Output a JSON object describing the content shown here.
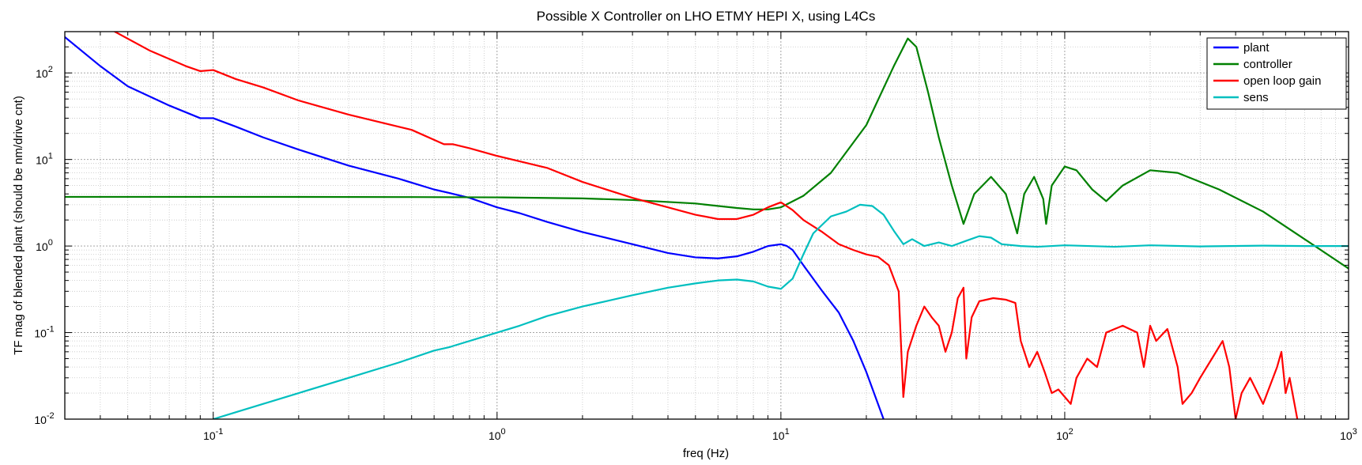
{
  "chart_data": {
    "type": "line",
    "title": "Possible X Controller on LHO ETMY HEPI X, using L4Cs",
    "xlabel": "freq (Hz)",
    "ylabel": "TF mag of blended plant (should be nm/drive cnt)",
    "xscale": "log",
    "yscale": "log",
    "xlim": [
      0.03,
      1000
    ],
    "ylim": [
      0.01,
      300
    ],
    "grid": true,
    "legend_position": "top-right",
    "x_tick_labels": [
      {
        "value": 0.1,
        "base": "10",
        "exp": "-1"
      },
      {
        "value": 1,
        "base": "10",
        "exp": "0"
      },
      {
        "value": 10,
        "base": "10",
        "exp": "1"
      },
      {
        "value": 100,
        "base": "10",
        "exp": "2"
      },
      {
        "value": 1000,
        "base": "10",
        "exp": "3"
      }
    ],
    "y_tick_labels": [
      {
        "value": 0.01,
        "base": "10",
        "exp": "-2"
      },
      {
        "value": 0.1,
        "base": "10",
        "exp": "-1"
      },
      {
        "value": 1,
        "base": "10",
        "exp": "0"
      },
      {
        "value": 10,
        "base": "10",
        "exp": "1"
      },
      {
        "value": 100,
        "base": "10",
        "exp": "2"
      }
    ],
    "series": [
      {
        "name": "plant",
        "color": "#0000ff",
        "points": [
          [
            0.03,
            260
          ],
          [
            0.04,
            120
          ],
          [
            0.05,
            70
          ],
          [
            0.07,
            42
          ],
          [
            0.09,
            30
          ],
          [
            0.1,
            30
          ],
          [
            0.12,
            24
          ],
          [
            0.15,
            18
          ],
          [
            0.2,
            13
          ],
          [
            0.3,
            8.5
          ],
          [
            0.45,
            6
          ],
          [
            0.6,
            4.5
          ],
          [
            0.68,
            4.1
          ],
          [
            0.7,
            4.0
          ],
          [
            0.8,
            3.6
          ],
          [
            1.0,
            2.8
          ],
          [
            1.2,
            2.4
          ],
          [
            1.5,
            1.9
          ],
          [
            2,
            1.45
          ],
          [
            3,
            1.05
          ],
          [
            4,
            0.83
          ],
          [
            5,
            0.74
          ],
          [
            6,
            0.72
          ],
          [
            7,
            0.76
          ],
          [
            8,
            0.86
          ],
          [
            9,
            1.0
          ],
          [
            10,
            1.05
          ],
          [
            10.5,
            1.0
          ],
          [
            11,
            0.9
          ],
          [
            12,
            0.6
          ],
          [
            14,
            0.3
          ],
          [
            16,
            0.17
          ],
          [
            18,
            0.08
          ],
          [
            20,
            0.035
          ],
          [
            23,
            0.01
          ]
        ]
      },
      {
        "name": "controller",
        "color": "#008000",
        "points": [
          [
            0.03,
            3.7
          ],
          [
            0.1,
            3.7
          ],
          [
            0.5,
            3.68
          ],
          [
            1,
            3.65
          ],
          [
            2,
            3.55
          ],
          [
            3,
            3.4
          ],
          [
            5,
            3.1
          ],
          [
            7,
            2.75
          ],
          [
            8,
            2.65
          ],
          [
            9,
            2.65
          ],
          [
            10,
            2.8
          ],
          [
            12,
            3.8
          ],
          [
            15,
            7
          ],
          [
            20,
            25
          ],
          [
            25,
            120
          ],
          [
            28,
            250
          ],
          [
            30,
            200
          ],
          [
            33,
            60
          ],
          [
            36,
            18
          ],
          [
            40,
            5
          ],
          [
            44,
            1.8
          ],
          [
            48,
            4
          ],
          [
            55,
            6.3
          ],
          [
            62,
            4
          ],
          [
            68,
            1.4
          ],
          [
            72,
            4
          ],
          [
            78,
            6.3
          ],
          [
            84,
            3.5
          ],
          [
            86,
            1.8
          ],
          [
            90,
            5
          ],
          [
            100,
            8.3
          ],
          [
            110,
            7.5
          ],
          [
            125,
            4.5
          ],
          [
            140,
            3.3
          ],
          [
            160,
            5
          ],
          [
            200,
            7.5
          ],
          [
            250,
            7
          ],
          [
            350,
            4.5
          ],
          [
            500,
            2.5
          ],
          [
            700,
            1.2
          ],
          [
            1000,
            0.55
          ]
        ]
      },
      {
        "name": "open loop gain",
        "color": "#ff0000",
        "points": [
          [
            0.045,
            300
          ],
          [
            0.06,
            180
          ],
          [
            0.08,
            120
          ],
          [
            0.09,
            105
          ],
          [
            0.1,
            108
          ],
          [
            0.12,
            85
          ],
          [
            0.15,
            68
          ],
          [
            0.2,
            48
          ],
          [
            0.3,
            33
          ],
          [
            0.5,
            22
          ],
          [
            0.65,
            15
          ],
          [
            0.7,
            15
          ],
          [
            0.8,
            13.5
          ],
          [
            1,
            11
          ],
          [
            1.5,
            8
          ],
          [
            2,
            5.5
          ],
          [
            3,
            3.6
          ],
          [
            4,
            2.8
          ],
          [
            5,
            2.3
          ],
          [
            6,
            2.05
          ],
          [
            7,
            2.05
          ],
          [
            8,
            2.3
          ],
          [
            9,
            2.8
          ],
          [
            10,
            3.2
          ],
          [
            11,
            2.6
          ],
          [
            12,
            2
          ],
          [
            14,
            1.45
          ],
          [
            16,
            1.05
          ],
          [
            18,
            0.9
          ],
          [
            20,
            0.8
          ],
          [
            22,
            0.75
          ],
          [
            24,
            0.6
          ],
          [
            26,
            0.3
          ],
          [
            27,
            0.018
          ],
          [
            28,
            0.06
          ],
          [
            30,
            0.12
          ],
          [
            32,
            0.2
          ],
          [
            34,
            0.15
          ],
          [
            36,
            0.12
          ],
          [
            38,
            0.06
          ],
          [
            40,
            0.1
          ],
          [
            42,
            0.25
          ],
          [
            44,
            0.33
          ],
          [
            45,
            0.05
          ],
          [
            47,
            0.15
          ],
          [
            50,
            0.23
          ],
          [
            56,
            0.25
          ],
          [
            62,
            0.24
          ],
          [
            67,
            0.22
          ],
          [
            70,
            0.08
          ],
          [
            75,
            0.04
          ],
          [
            80,
            0.06
          ],
          [
            85,
            0.035
          ],
          [
            90,
            0.02
          ],
          [
            95,
            0.022
          ],
          [
            105,
            0.015
          ],
          [
            110,
            0.03
          ],
          [
            120,
            0.05
          ],
          [
            130,
            0.04
          ],
          [
            140,
            0.1
          ],
          [
            150,
            0.11
          ],
          [
            160,
            0.12
          ],
          [
            180,
            0.1
          ],
          [
            190,
            0.04
          ],
          [
            200,
            0.12
          ],
          [
            210,
            0.08
          ],
          [
            230,
            0.11
          ],
          [
            250,
            0.04
          ],
          [
            260,
            0.015
          ],
          [
            280,
            0.02
          ],
          [
            300,
            0.03
          ],
          [
            330,
            0.05
          ],
          [
            360,
            0.08
          ],
          [
            380,
            0.04
          ],
          [
            400,
            0.01
          ],
          [
            420,
            0.02
          ],
          [
            450,
            0.03
          ],
          [
            500,
            0.015
          ],
          [
            560,
            0.04
          ],
          [
            580,
            0.06
          ],
          [
            600,
            0.02
          ],
          [
            620,
            0.03
          ],
          [
            660,
            0.01
          ]
        ]
      },
      {
        "name": "sens",
        "color": "#00bfbf",
        "points": [
          [
            0.1,
            0.01
          ],
          [
            0.12,
            0.012
          ],
          [
            0.15,
            0.015
          ],
          [
            0.2,
            0.02
          ],
          [
            0.3,
            0.03
          ],
          [
            0.45,
            0.045
          ],
          [
            0.6,
            0.062
          ],
          [
            0.68,
            0.068
          ],
          [
            0.7,
            0.07
          ],
          [
            0.9,
            0.09
          ],
          [
            1.0,
            0.1
          ],
          [
            1.2,
            0.12
          ],
          [
            1.5,
            0.155
          ],
          [
            2,
            0.2
          ],
          [
            3,
            0.27
          ],
          [
            4,
            0.33
          ],
          [
            5,
            0.37
          ],
          [
            6,
            0.4
          ],
          [
            7,
            0.41
          ],
          [
            8,
            0.39
          ],
          [
            9,
            0.34
          ],
          [
            10,
            0.32
          ],
          [
            11,
            0.42
          ],
          [
            12,
            0.8
          ],
          [
            13,
            1.4
          ],
          [
            15,
            2.2
          ],
          [
            17,
            2.5
          ],
          [
            19,
            3.0
          ],
          [
            21,
            2.9
          ],
          [
            23,
            2.3
          ],
          [
            25,
            1.5
          ],
          [
            27,
            1.05
          ],
          [
            29,
            1.2
          ],
          [
            32,
            1.0
          ],
          [
            36,
            1.1
          ],
          [
            40,
            1.0
          ],
          [
            45,
            1.15
          ],
          [
            50,
            1.3
          ],
          [
            55,
            1.25
          ],
          [
            60,
            1.05
          ],
          [
            70,
            1.0
          ],
          [
            80,
            0.98
          ],
          [
            100,
            1.02
          ],
          [
            150,
            0.98
          ],
          [
            200,
            1.02
          ],
          [
            300,
            0.99
          ],
          [
            500,
            1.01
          ],
          [
            700,
            1.0
          ],
          [
            1000,
            1.0
          ]
        ]
      }
    ]
  }
}
